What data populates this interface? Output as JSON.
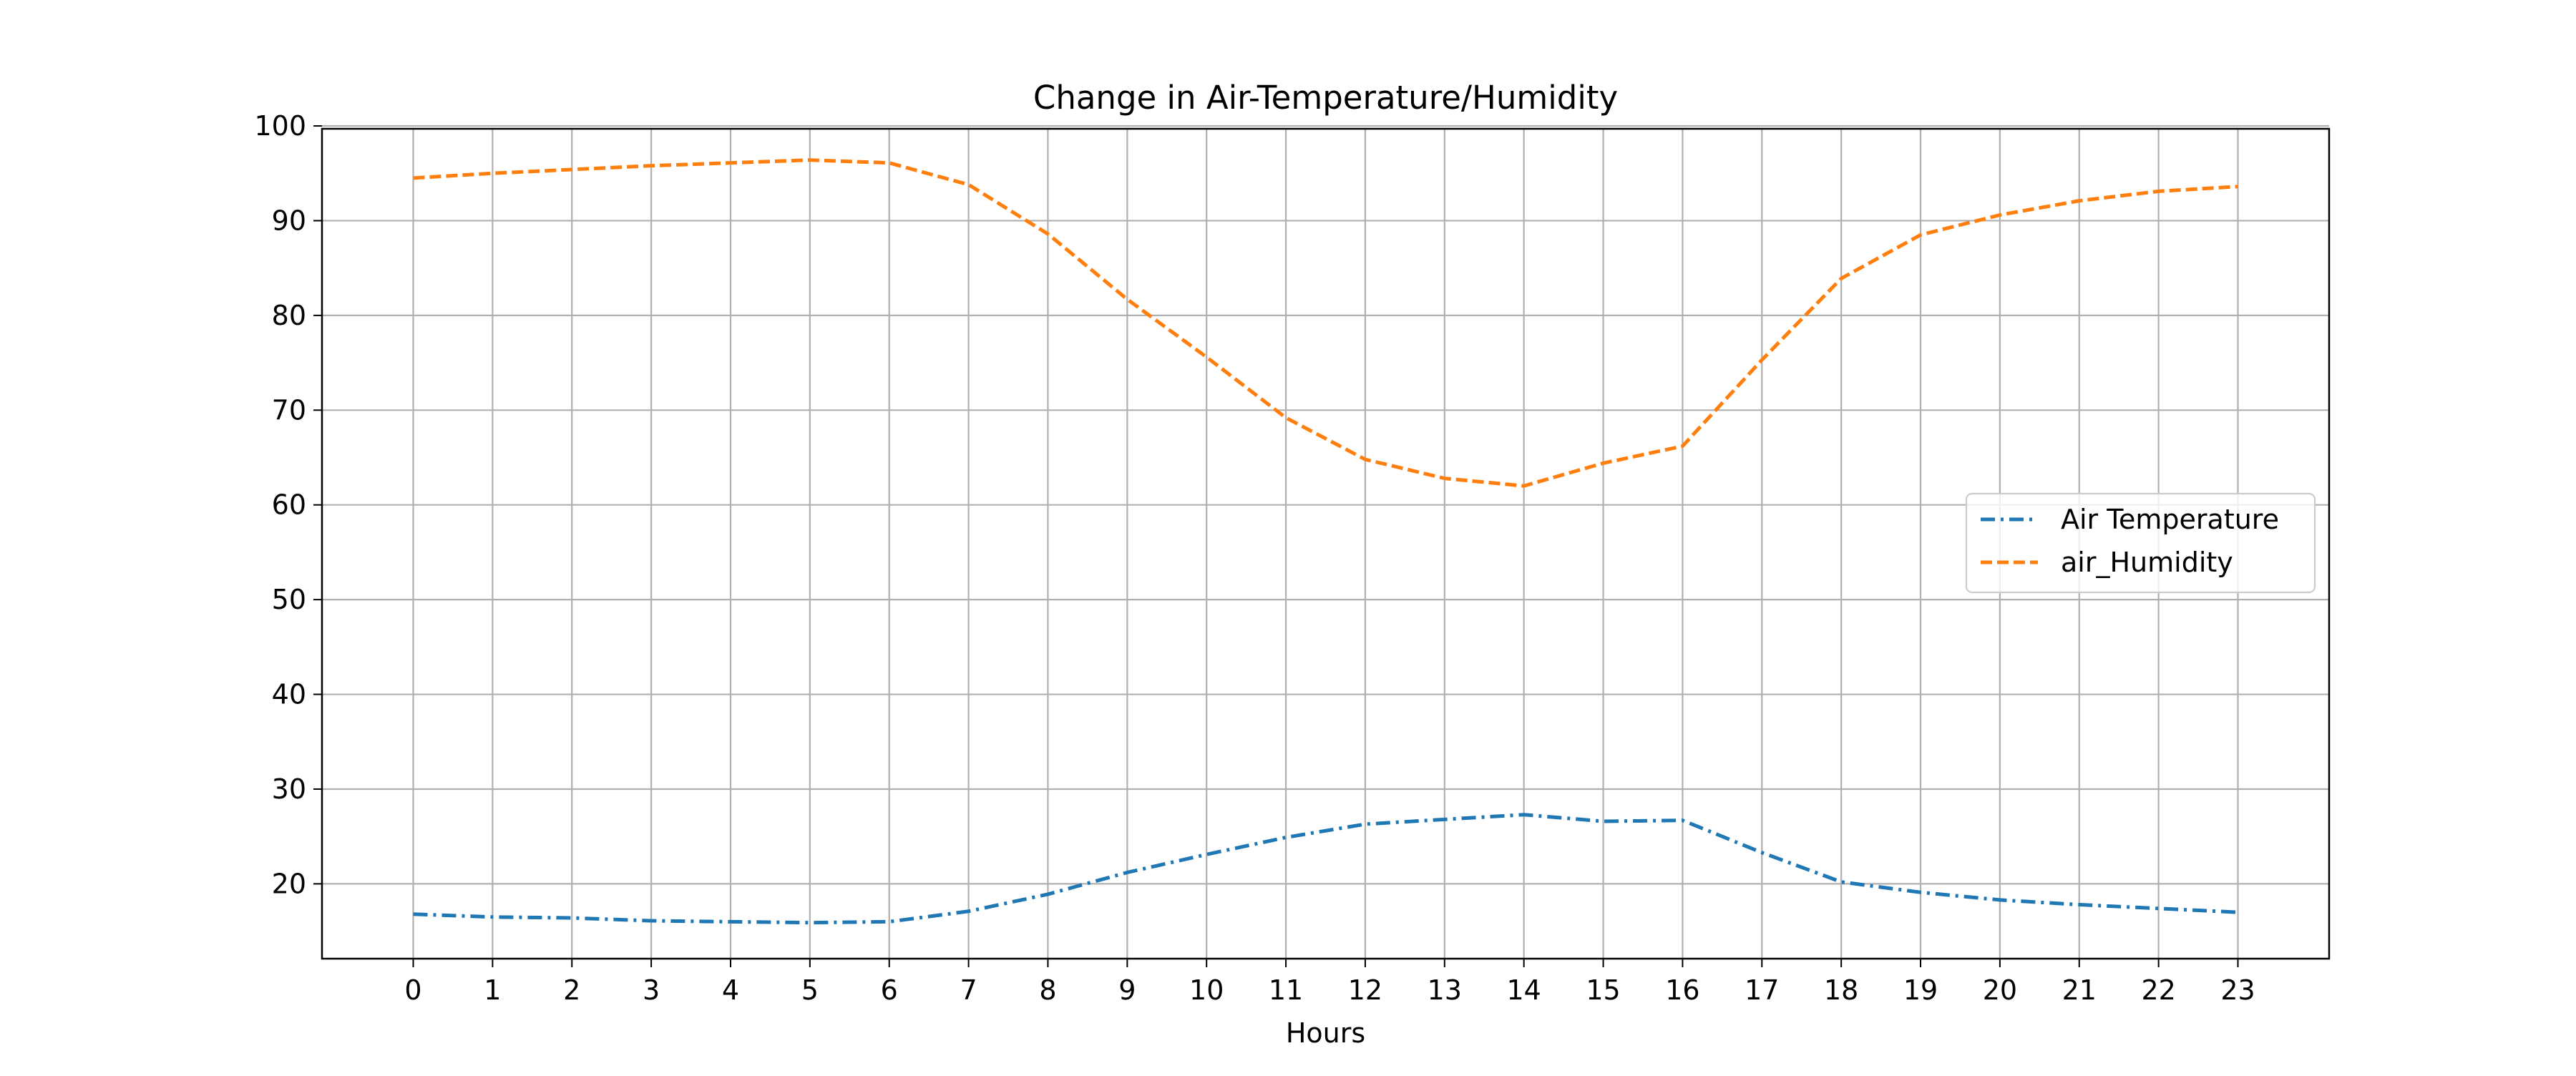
{
  "chart_data": {
    "type": "line",
    "title": "Change in Air-Temperature/Humidity",
    "xlabel": "Hours",
    "ylabel": "",
    "x": [
      0,
      1,
      2,
      3,
      4,
      5,
      6,
      7,
      8,
      9,
      10,
      11,
      12,
      13,
      14,
      15,
      16,
      17,
      18,
      19,
      20,
      21,
      22,
      23
    ],
    "xlim": [
      -1.15,
      24.15
    ],
    "ylim": [
      12.1,
      99.7
    ],
    "yticks": [
      20,
      30,
      40,
      50,
      60,
      70,
      80,
      90,
      100
    ],
    "grid": true,
    "legend_position": "center-right",
    "series": [
      {
        "name": "Air Temperature",
        "color": "#1f77b4",
        "linestyle": "dashdot",
        "values": [
          16.8,
          16.5,
          16.4,
          16.1,
          16.0,
          15.9,
          16.0,
          17.1,
          18.9,
          21.2,
          23.1,
          24.9,
          26.3,
          26.8,
          27.3,
          26.6,
          26.7,
          23.3,
          20.2,
          19.1,
          18.3,
          17.8,
          17.4,
          17.0
        ]
      },
      {
        "name": "air_Humidity",
        "color": "#ff7f0e",
        "linestyle": "dashed",
        "values": [
          94.5,
          95.0,
          95.4,
          95.8,
          96.1,
          96.4,
          96.1,
          93.8,
          88.6,
          81.7,
          75.6,
          69.2,
          64.8,
          62.8,
          62.0,
          64.4,
          66.2,
          75.3,
          83.9,
          88.5,
          90.6,
          92.1,
          93.1,
          93.6
        ]
      }
    ]
  }
}
